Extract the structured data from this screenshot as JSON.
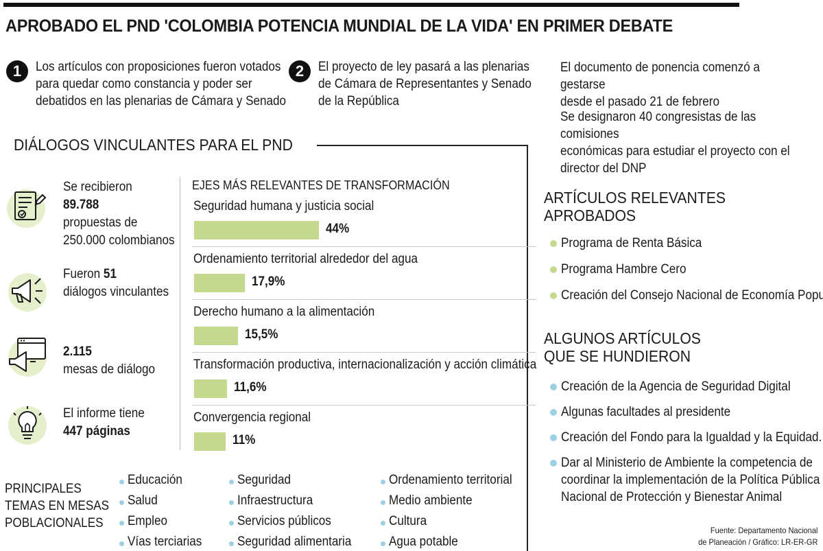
{
  "title": "APROBADO EL PND 'COLOMBIA POTENCIA MUNDIAL DE LA VIDA' EN PRIMER DEBATE",
  "points": [
    {
      "number": "1",
      "lines": [
        "Los artículos con proposiciones fueron votados",
        "para quedar como constancia y poder ser",
        "debatidos en las plenarias de Cámara y Senado"
      ]
    },
    {
      "number": "2",
      "lines": [
        "El proyecto de ley pasará a las plenarias",
        "de Cámara de Representantes y Senado",
        "de la República"
      ]
    }
  ],
  "info": [
    {
      "lines": [
        "El documento de ponencia comenzó a gestarse",
        "desde el pasado 21 de febrero"
      ]
    },
    {
      "lines": [
        "Se designaron 40 congresistas de las comisiones",
        "económicas para estudiar el proyecto con el",
        "director del DNP"
      ]
    }
  ],
  "dialogos": {
    "title": "DIÁLOGOS VINCULANTES PARA EL PND",
    "stats": [
      {
        "icon": "document-pen-icon",
        "pre": "Se recibieron",
        "bold": "89.788",
        "post1": "propuestas de",
        "post2": "250.000 colombianos"
      },
      {
        "icon": "megaphone-icon",
        "pre": "Fueron ",
        "bold": "51",
        "post1": "diálogos vinculantes"
      },
      {
        "icon": "browser-megaphone-icon",
        "bold": "2.115",
        "post1": "mesas de diálogo"
      },
      {
        "icon": "lightbulb-icon",
        "pre": "El informe tiene",
        "bold": "447 páginas"
      }
    ]
  },
  "colors": {
    "bar": "#c5da8e",
    "green_dot": "#c5da8e",
    "blue_dot": "#9ed0e3"
  },
  "chart_data": {
    "type": "bar",
    "orientation": "horizontal",
    "title": "EJES MÁS RELEVANTES DE TRANSFORMACIÓN",
    "categories": [
      "Seguridad humana y justicia social",
      "Ordenamiento territorial alrededor del agua",
      "Derecho humano a la alimentación",
      "Transformación productiva, internacionalización y acción climática",
      "Convergencia regional"
    ],
    "values": [
      44,
      17.9,
      15.5,
      11.6,
      11
    ],
    "value_labels": [
      "44%",
      "17,9%",
      "15,5%",
      "11,6%",
      "11%"
    ],
    "unit": "%",
    "xlim": [
      0,
      44
    ],
    "grid": false,
    "legend": "none"
  },
  "relevantes": {
    "title_lines": [
      "ARTÍCULOS RELEVANTES",
      "APROBADOS"
    ],
    "items": [
      "Programa de Renta Básica",
      "Programa Hambre Cero",
      "Creación del Consejo Nacional de Economía Popular"
    ]
  },
  "hundidos": {
    "title_lines": [
      "ALGUNOS ARTÍCULOS",
      "QUE SE HUNDIERON"
    ],
    "items": [
      [
        "Creación de la Agencia de Seguridad Digital"
      ],
      [
        "Algunas facultades al presidente"
      ],
      [
        "Creación del  Fondo para la Igualdad y la Equidad."
      ],
      [
        "Dar al Ministerio de Ambiente la competencia de",
        "coordinar la implementación de la Política Pública",
        "Nacional de Protección y Bienestar Animal"
      ]
    ]
  },
  "temas": {
    "title_lines": [
      "PRINCIPALES",
      "TEMAS EN MESAS",
      "POBLACIONALES"
    ],
    "columns": [
      [
        "Educación",
        "Salud",
        "Empleo",
        "Vías terciarias"
      ],
      [
        "Seguridad",
        "Infraestructura",
        "Servicios públicos",
        "Seguridad alimentaria"
      ],
      [
        "Ordenamiento territorial",
        "Medio ambiente",
        "Cultura",
        "Agua potable"
      ]
    ]
  },
  "source": [
    "Fuente: Departamento Nacional",
    "de Planeación / Gráfico: LR-ER-GR"
  ]
}
